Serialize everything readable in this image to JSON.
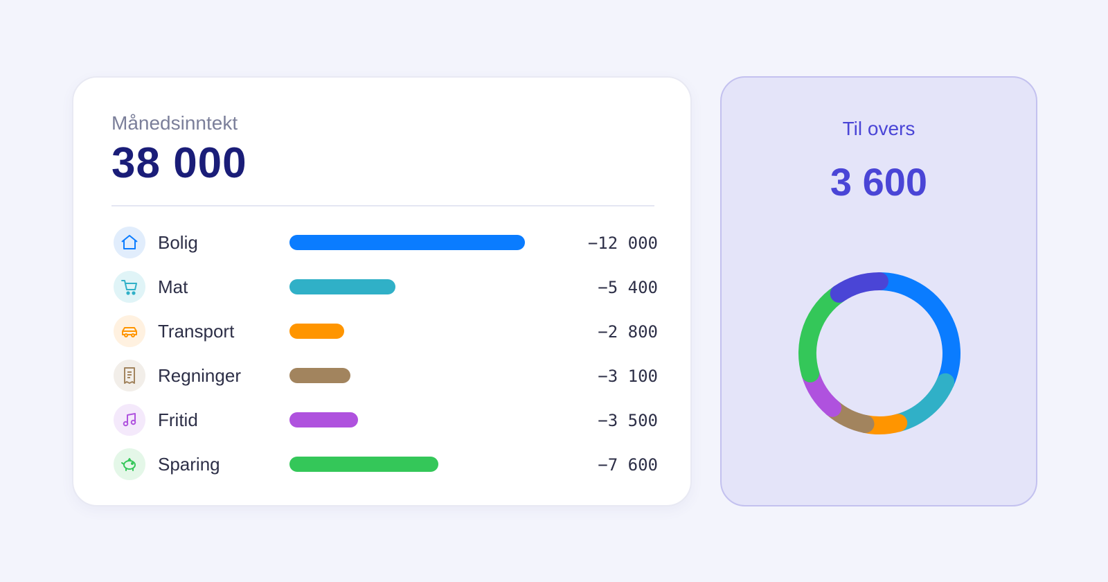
{
  "income": {
    "label": "Månedsinntekt",
    "value": "38 000"
  },
  "categories": [
    {
      "name": "Bolig",
      "amount": "−12 000",
      "value": 12000,
      "color": "#0a7cff",
      "bg": "#e1edfc",
      "icon": "house-icon"
    },
    {
      "name": "Mat",
      "amount": "−5 400",
      "value": 5400,
      "color": "#30b0c7",
      "bg": "#e0f4f7",
      "icon": "cart-icon"
    },
    {
      "name": "Transport",
      "amount": "−2 800",
      "value": 2800,
      "color": "#ff9500",
      "bg": "#fff1e0",
      "icon": "car-icon"
    },
    {
      "name": "Regninger",
      "amount": "−3 100",
      "value": 3100,
      "color": "#a2845e",
      "bg": "#f2eee9",
      "icon": "receipt-icon"
    },
    {
      "name": "Fritid",
      "amount": "−3 500",
      "value": 3500,
      "color": "#af52de",
      "bg": "#f4e9fb",
      "icon": "music-note-icon"
    },
    {
      "name": "Sparing",
      "amount": "−7 600",
      "value": 7600,
      "color": "#34c759",
      "bg": "#e4f7e8",
      "icon": "piggy-bank-icon"
    }
  ],
  "leftover": {
    "label": "Til overs",
    "value": "3 600",
    "amount": 3600,
    "color": "#4a45d6"
  }
}
